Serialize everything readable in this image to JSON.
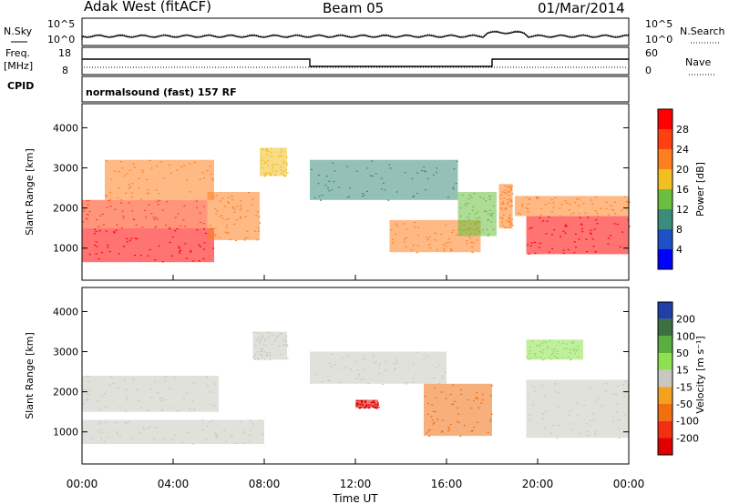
{
  "header": {
    "station": "Adak West (fitACF)",
    "beam": "Beam 05",
    "date": "01/Mar/2014"
  },
  "panels": {
    "nsky": {
      "left_label": "N.Sky",
      "right_label": "N.Search",
      "ticks_left": [
        "10^5",
        "10^0"
      ],
      "ticks_right": [
        "10^5",
        "10^0"
      ]
    },
    "freq": {
      "left_label_1": "Freq.",
      "left_label_2": "[MHz]",
      "right_label": "Nave",
      "ticks_left": [
        "18",
        "8"
      ],
      "ticks_right": [
        "60",
        "0"
      ]
    },
    "cpid": {
      "label": "CPID",
      "text": "normalsound (fast) 157 RF"
    }
  },
  "axes": {
    "ylabel": "Slant Range [km]",
    "yticks": [
      "4000",
      "3000",
      "2000",
      "1000"
    ],
    "xticks": [
      "00:00",
      "04:00",
      "08:00",
      "12:00",
      "16:00",
      "20:00",
      "00:00"
    ],
    "xlabel": "Time UT"
  },
  "colorbars": {
    "power": {
      "title": "Power [dB]",
      "labels": [
        "28",
        "24",
        "20",
        "16",
        "12",
        "8",
        "4"
      ],
      "colors": [
        "#ff0000",
        "#ff4010",
        "#ff8020",
        "#f0c020",
        "#6bbf40",
        "#3c8c7c",
        "#2050c8",
        "#0000ff"
      ]
    },
    "velocity": {
      "title": "Velocity [m s⁻¹]",
      "labels": [
        "200",
        "100",
        "50",
        "15",
        "-15",
        "-50",
        "-100",
        "-200"
      ],
      "colors": [
        "#2040a8",
        "#3c7040",
        "#5aae40",
        "#8ee050",
        "#c8c8c0",
        "#f4a020",
        "#f07010",
        "#f03010",
        "#e00000"
      ]
    }
  },
  "chart_data": [
    {
      "type": "heatmap",
      "name": "power",
      "xlabel": "Time UT",
      "ylabel": "Slant Range [km]",
      "x_range_hours": [
        0,
        24
      ],
      "y_range_km": [
        200,
        4600
      ],
      "color_scale": [
        0,
        30
      ],
      "units": "dB",
      "regions": [
        {
          "t": [
            0.0,
            5.8
          ],
          "r": [
            650,
            1500
          ],
          "value": 30
        },
        {
          "t": [
            0.0,
            5.5
          ],
          "r": [
            1500,
            2200
          ],
          "value": 24
        },
        {
          "t": [
            1.0,
            5.8
          ],
          "r": [
            2200,
            3200
          ],
          "value": 20
        },
        {
          "t": [
            5.5,
            7.8
          ],
          "r": [
            1200,
            2400
          ],
          "value": 22
        },
        {
          "t": [
            7.8,
            9.0
          ],
          "r": [
            2800,
            3500
          ],
          "value": 16
        },
        {
          "t": [
            10.0,
            16.5
          ],
          "r": [
            2200,
            3200
          ],
          "value": 8
        },
        {
          "t": [
            13.5,
            17.5
          ],
          "r": [
            900,
            1700
          ],
          "value": 22
        },
        {
          "t": [
            16.5,
            18.2
          ],
          "r": [
            1300,
            2400
          ],
          "value": 14
        },
        {
          "t": [
            18.3,
            18.9
          ],
          "r": [
            1500,
            2600
          ],
          "value": 20
        },
        {
          "t": [
            19.5,
            24.0
          ],
          "r": [
            850,
            1800
          ],
          "value": 28
        },
        {
          "t": [
            19.0,
            24.0
          ],
          "r": [
            1800,
            2300
          ],
          "value": 20
        }
      ]
    },
    {
      "type": "heatmap",
      "name": "velocity",
      "xlabel": "Time UT",
      "ylabel": "Slant Range [km]",
      "x_range_hours": [
        0,
        24
      ],
      "y_range_km": [
        200,
        4600
      ],
      "color_scale": [
        -200,
        200
      ],
      "units": "m s^-1",
      "regions": [
        {
          "t": [
            0.0,
            8.0
          ],
          "r": [
            700,
            1300
          ],
          "value": 0
        },
        {
          "t": [
            0.0,
            6.0
          ],
          "r": [
            1500,
            2400
          ],
          "value": 0
        },
        {
          "t": [
            7.5,
            9.0
          ],
          "r": [
            2800,
            3500
          ],
          "value": 0
        },
        {
          "t": [
            10.0,
            16.0
          ],
          "r": [
            2200,
            3000
          ],
          "value": 0
        },
        {
          "t": [
            12.0,
            13.0
          ],
          "r": [
            1600,
            1800
          ],
          "value": -200
        },
        {
          "t": [
            15.0,
            18.0
          ],
          "r": [
            900,
            2200
          ],
          "value": -60
        },
        {
          "t": [
            19.5,
            24.0
          ],
          "r": [
            850,
            2300
          ],
          "value": 0
        },
        {
          "t": [
            19.5,
            22.0
          ],
          "r": [
            2800,
            3300
          ],
          "value": 30
        }
      ]
    }
  ]
}
